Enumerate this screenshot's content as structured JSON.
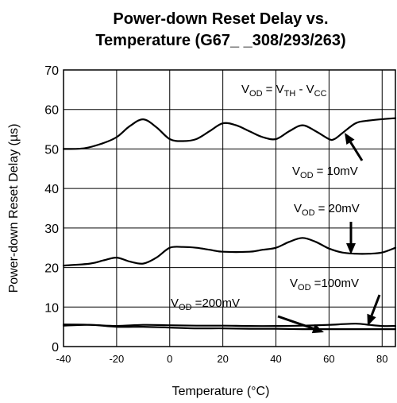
{
  "chart_data": {
    "type": "line",
    "title_line1": "Power-down Reset Delay vs.",
    "title_line2": "Temperature (G67_ _308/293/263)",
    "xlabel": "Temperature (°C)",
    "ylabel": "Power-down Reset Delay (µs)",
    "xlim": [
      -40,
      85
    ],
    "ylim": [
      0,
      70
    ],
    "xticks": [
      -40,
      -20,
      0,
      20,
      40,
      60,
      80
    ],
    "yticks": [
      0,
      10,
      20,
      30,
      40,
      50,
      60,
      70
    ],
    "grid": true,
    "series": [
      {
        "name": "VOD = 10mV",
        "label": {
          "main": "V",
          "sub": "OD",
          "rest": " = 10mV"
        },
        "points": [
          [
            -40,
            50
          ],
          [
            -32,
            50.2
          ],
          [
            -25,
            51.5
          ],
          [
            -20,
            53
          ],
          [
            -15,
            55.8
          ],
          [
            -10,
            57.5
          ],
          [
            -5,
            55.5
          ],
          [
            0,
            52.5
          ],
          [
            5,
            52
          ],
          [
            10,
            52.5
          ],
          [
            15,
            54.5
          ],
          [
            20,
            56.5
          ],
          [
            25,
            56
          ],
          [
            30,
            54.5
          ],
          [
            35,
            53
          ],
          [
            40,
            52.5
          ],
          [
            45,
            54.5
          ],
          [
            50,
            56
          ],
          [
            55,
            54.5
          ],
          [
            60,
            52.5
          ],
          [
            62,
            52.5
          ],
          [
            65,
            54
          ],
          [
            70,
            56.5
          ],
          [
            75,
            57.2
          ],
          [
            85,
            57.8
          ]
        ]
      },
      {
        "name": "VOD = 20mV",
        "label": {
          "main": "V",
          "sub": "OD",
          "rest": " = 20mV"
        },
        "points": [
          [
            -40,
            20.5
          ],
          [
            -30,
            21
          ],
          [
            -25,
            21.8
          ],
          [
            -20,
            22.5
          ],
          [
            -15,
            21.5
          ],
          [
            -10,
            21
          ],
          [
            -5,
            22.5
          ],
          [
            0,
            25
          ],
          [
            5,
            25.2
          ],
          [
            10,
            25
          ],
          [
            15,
            24.5
          ],
          [
            20,
            24
          ],
          [
            30,
            24
          ],
          [
            35,
            24.5
          ],
          [
            40,
            25
          ],
          [
            45,
            26.5
          ],
          [
            50,
            27.5
          ],
          [
            55,
            26.5
          ],
          [
            60,
            24.8
          ],
          [
            65,
            23.8
          ],
          [
            70,
            23.5
          ],
          [
            75,
            23.5
          ],
          [
            80,
            23.8
          ],
          [
            85,
            25
          ]
        ]
      },
      {
        "name": "VOD =100mV",
        "label": {
          "main": "V",
          "sub": "OD",
          "rest": " =100mV"
        },
        "points": [
          [
            -40,
            5.6
          ],
          [
            -30,
            5.5
          ],
          [
            -20,
            5.2
          ],
          [
            -10,
            5.5
          ],
          [
            0,
            5.4
          ],
          [
            10,
            5.3
          ],
          [
            20,
            5.3
          ],
          [
            30,
            5.2
          ],
          [
            40,
            5.2
          ],
          [
            50,
            5.3
          ],
          [
            60,
            5.5
          ],
          [
            70,
            5.8
          ],
          [
            75,
            5.5
          ],
          [
            80,
            5.2
          ],
          [
            85,
            5.2
          ]
        ]
      },
      {
        "name": "VOD =200mV",
        "label": {
          "main": "V",
          "sub": "OD",
          "rest": " =200mV"
        },
        "points": [
          [
            -40,
            5.3
          ],
          [
            -30,
            5.5
          ],
          [
            -20,
            5.0
          ],
          [
            -10,
            5.0
          ],
          [
            0,
            4.8
          ],
          [
            10,
            4.6
          ],
          [
            20,
            4.6
          ],
          [
            30,
            4.5
          ],
          [
            40,
            4.5
          ],
          [
            50,
            4.4
          ],
          [
            60,
            4.4
          ],
          [
            70,
            4.4
          ],
          [
            85,
            4.4
          ]
        ]
      }
    ],
    "formula": {
      "a": "V",
      "a_sub": "OD",
      "eq": " = ",
      "b": "V",
      "b_sub": "TH",
      "minus": " - ",
      "c": "V",
      "c_sub": "CC"
    }
  }
}
